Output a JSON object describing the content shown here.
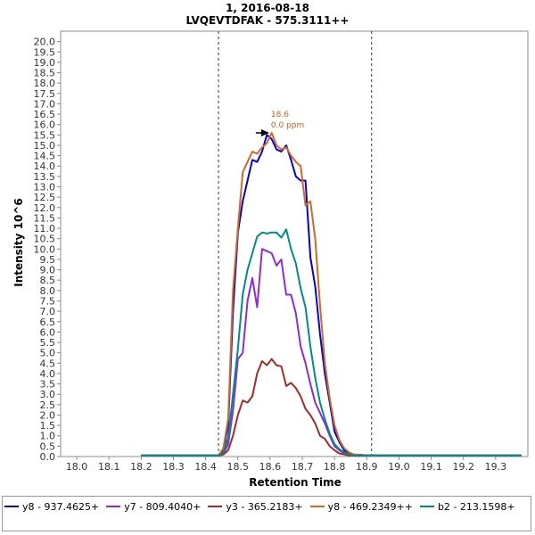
{
  "chart_data": {
    "type": "line",
    "title": "1, 2016-08-18",
    "subtitle": "LVQEVTDFAK - 575.3111++",
    "xlabel": "Retention Time",
    "ylabel": "Intensity 10^6",
    "xlim": [
      17.95,
      19.4
    ],
    "ylim": [
      0,
      20.5
    ],
    "xticks": [
      18.0,
      18.1,
      18.2,
      18.3,
      18.4,
      18.5,
      18.6,
      18.7,
      18.8,
      18.9,
      19.0,
      19.1,
      19.2,
      19.3
    ],
    "xtick_labels": [
      "18.0",
      "18.1",
      "18.2",
      "18.3",
      "18.4",
      "18.5",
      "18.6",
      "18.7",
      "18.8",
      "18.9",
      "19.0",
      "19.1",
      "19.2",
      "19.3"
    ],
    "yticks": [
      0,
      0.5,
      1,
      1.5,
      2,
      2.5,
      3,
      3.5,
      4,
      4.5,
      5,
      5.5,
      6,
      6.5,
      7,
      7.5,
      8,
      8.5,
      9,
      9.5,
      10,
      10.5,
      11,
      11.5,
      12,
      12.5,
      13,
      13.5,
      14,
      14.5,
      15,
      15.5,
      16,
      16.5,
      17,
      17.5,
      18,
      18.5,
      19,
      19.5,
      20
    ],
    "ytick_labels": [
      "0.0",
      "0.5",
      "1.0",
      "1.5",
      "2.0",
      "2.5",
      "3.0",
      "3.5",
      "4.0",
      "4.5",
      "5.0",
      "5.5",
      "6.0",
      "6.5",
      "7.0",
      "7.5",
      "8.0",
      "8.5",
      "9.0",
      "9.5",
      "10.0",
      "10.5",
      "11.0",
      "11.5",
      "12.0",
      "12.5",
      "13.0",
      "13.5",
      "14.0",
      "14.5",
      "15.0",
      "15.5",
      "16.0",
      "16.5",
      "17.0",
      "17.5",
      "18.0",
      "18.5",
      "19.0",
      "19.5",
      "20.0"
    ],
    "grid": false,
    "legend_position": "bottom",
    "integration_boundaries": [
      18.44,
      18.915
    ],
    "peak_annotation": {
      "x": 18.6,
      "y": 15.6,
      "label": "18.6",
      "sublabel": "0.0 ppm",
      "color": "#c8641e"
    },
    "series": [
      {
        "name": "y8 - 937.4625+",
        "color": "#0000e0",
        "x": [
          18.2,
          18.44,
          18.455,
          18.47,
          18.485,
          18.5,
          18.515,
          18.53,
          18.545,
          18.56,
          18.575,
          18.59,
          18.605,
          18.62,
          18.635,
          18.65,
          18.665,
          18.68,
          18.695,
          18.71,
          18.725,
          18.74,
          18.755,
          18.77,
          18.785,
          18.8,
          18.815,
          18.83,
          18.845,
          18.86,
          18.88,
          18.9,
          18.93,
          19.38
        ],
        "y": [
          0.05,
          0.05,
          0.3,
          1.5,
          7.0,
          10.8,
          12.3,
          13.3,
          14.3,
          14.2,
          14.7,
          15.5,
          15.3,
          14.8,
          14.7,
          15.0,
          14.3,
          13.5,
          13.3,
          13.3,
          9.6,
          8.2,
          5.9,
          4.0,
          2.6,
          1.2,
          0.7,
          0.3,
          0.15,
          0.1,
          0.08,
          0.05,
          0.05,
          0.05
        ]
      },
      {
        "name": "y7 - 809.4040+",
        "color": "#8a2be2",
        "x": [
          18.2,
          18.44,
          18.455,
          18.47,
          18.485,
          18.5,
          18.515,
          18.53,
          18.545,
          18.56,
          18.575,
          18.59,
          18.605,
          18.62,
          18.635,
          18.65,
          18.665,
          18.68,
          18.695,
          18.71,
          18.725,
          18.74,
          18.755,
          18.77,
          18.785,
          18.8,
          18.815,
          18.83,
          18.845,
          18.86,
          18.88,
          18.9,
          18.93,
          19.38
        ],
        "y": [
          0.05,
          0.05,
          0.1,
          0.6,
          2.2,
          4.7,
          5.0,
          7.5,
          8.6,
          7.2,
          10.0,
          9.9,
          9.8,
          9.2,
          9.5,
          7.8,
          7.8,
          6.9,
          5.3,
          4.5,
          3.5,
          2.6,
          2.1,
          1.6,
          1.0,
          0.5,
          0.3,
          0.15,
          0.1,
          0.05,
          0.05,
          0.05,
          0.05,
          0.05
        ]
      },
      {
        "name": "y3 - 365.2183+",
        "color": "#a52a2a",
        "x": [
          18.2,
          18.44,
          18.455,
          18.47,
          18.485,
          18.5,
          18.515,
          18.53,
          18.545,
          18.56,
          18.575,
          18.59,
          18.605,
          18.62,
          18.635,
          18.65,
          18.665,
          18.68,
          18.695,
          18.71,
          18.725,
          18.74,
          18.755,
          18.77,
          18.785,
          18.8,
          18.815,
          18.83,
          18.845,
          18.86,
          18.88,
          18.9,
          18.93,
          19.38
        ],
        "y": [
          0.05,
          0.05,
          0.1,
          0.3,
          1.0,
          2.0,
          2.7,
          2.6,
          2.9,
          4.0,
          4.6,
          4.4,
          4.7,
          4.4,
          4.35,
          3.4,
          3.55,
          3.3,
          2.9,
          2.3,
          2.0,
          1.6,
          1.0,
          0.85,
          0.5,
          0.3,
          0.15,
          0.1,
          0.05,
          0.05,
          0.05,
          0.05,
          0.05,
          0.05
        ]
      },
      {
        "name": "y8 - 469.2349++",
        "color": "#d2691e",
        "x": [
          18.2,
          18.44,
          18.455,
          18.47,
          18.485,
          18.5,
          18.515,
          18.53,
          18.545,
          18.56,
          18.575,
          18.59,
          18.605,
          18.62,
          18.635,
          18.65,
          18.665,
          18.68,
          18.695,
          18.71,
          18.725,
          18.74,
          18.755,
          18.77,
          18.785,
          18.8,
          18.815,
          18.83,
          18.845,
          18.86,
          18.88,
          18.9,
          18.93,
          19.38
        ],
        "y": [
          0.05,
          0.05,
          0.4,
          1.8,
          8.0,
          11.0,
          13.7,
          14.2,
          14.7,
          14.6,
          14.9,
          15.1,
          15.6,
          15.0,
          14.8,
          14.9,
          14.5,
          14.2,
          14.0,
          12.1,
          12.3,
          10.5,
          7.3,
          4.5,
          2.8,
          1.5,
          0.8,
          0.4,
          0.2,
          0.1,
          0.08,
          0.05,
          0.05,
          0.05
        ]
      },
      {
        "name": "b2 - 213.1598+",
        "color": "#008b8b",
        "x": [
          18.2,
          18.44,
          18.455,
          18.47,
          18.485,
          18.5,
          18.515,
          18.53,
          18.545,
          18.56,
          18.575,
          18.59,
          18.605,
          18.62,
          18.635,
          18.65,
          18.665,
          18.68,
          18.695,
          18.71,
          18.725,
          18.74,
          18.755,
          18.77,
          18.785,
          18.8,
          18.815,
          18.83,
          18.845,
          18.86,
          18.88,
          18.9,
          18.93,
          19.38
        ],
        "y": [
          0.05,
          0.05,
          0.2,
          0.9,
          3.0,
          5.2,
          7.8,
          9.0,
          9.8,
          10.6,
          10.8,
          10.75,
          10.8,
          10.8,
          10.55,
          10.95,
          10.0,
          9.3,
          8.1,
          7.2,
          5.3,
          3.8,
          2.6,
          1.8,
          1.1,
          0.6,
          0.35,
          0.2,
          0.1,
          0.05,
          0.05,
          0.05,
          0.05,
          0.05
        ]
      }
    ]
  }
}
